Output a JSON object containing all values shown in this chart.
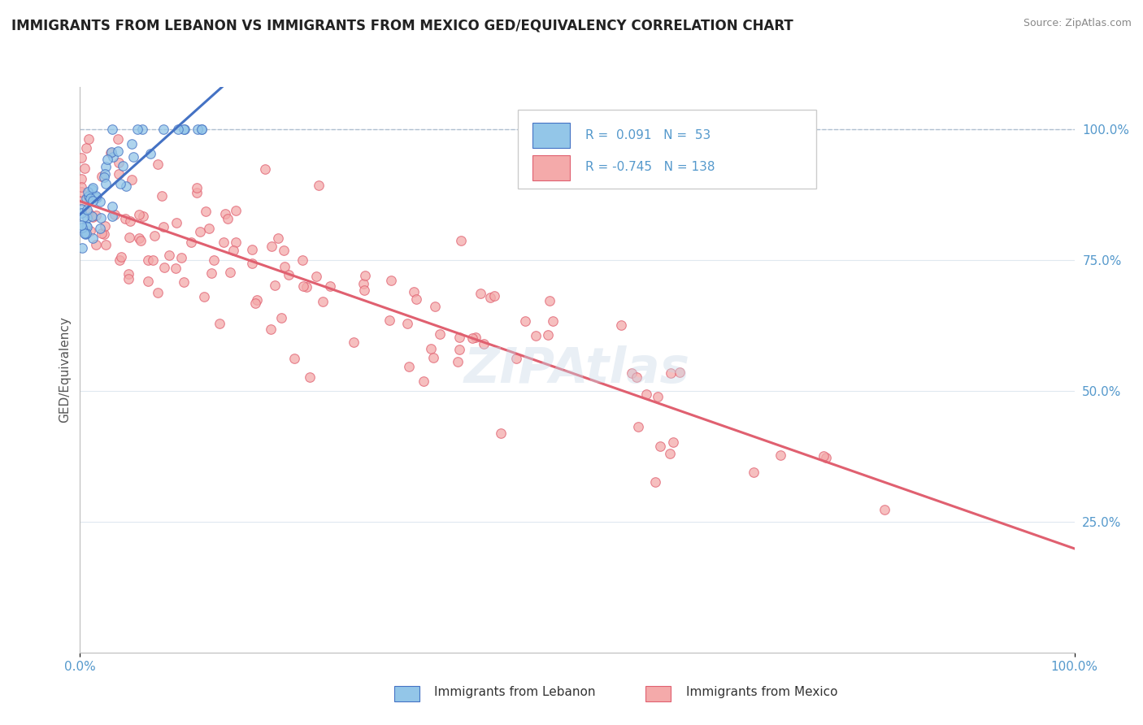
{
  "title": "IMMIGRANTS FROM LEBANON VS IMMIGRANTS FROM MEXICO GED/EQUIVALENCY CORRELATION CHART",
  "source": "Source: ZipAtlas.com",
  "ylabel": "GED/Equivalency",
  "xlim": [
    0.0,
    1.0
  ],
  "ylim": [
    0.0,
    1.08
  ],
  "legend_R1": "0.091",
  "legend_N1": "53",
  "legend_R2": "-0.745",
  "legend_N2": "138",
  "color_lebanon": "#93c6e8",
  "color_mexico": "#f4aaaa",
  "color_line_lebanon": "#4472c4",
  "color_line_mexico": "#e06070",
  "background_color": "#ffffff",
  "tick_color": "#5599cc",
  "grid_color": "#e0e8f0",
  "dashed_line_color": "#aabbcc"
}
